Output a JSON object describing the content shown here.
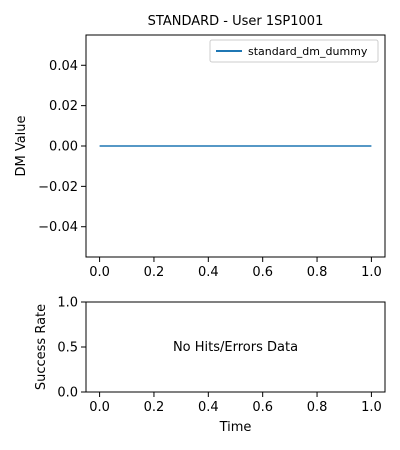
{
  "chart_data": [
    {
      "type": "line",
      "title": "STANDARD - User 1SP1001",
      "xlabel": "",
      "ylabel": "DM Value",
      "xlim": [
        -0.05,
        1.05
      ],
      "ylim": [
        -0.055,
        0.055
      ],
      "x_ticks": [
        0.0,
        0.2,
        0.4,
        0.6,
        0.8,
        1.0
      ],
      "x_tick_labels": [
        "0.0",
        "0.2",
        "0.4",
        "0.6",
        "0.8",
        "1.0"
      ],
      "y_ticks": [
        0.04,
        0.02,
        0.0,
        -0.02,
        -0.04
      ],
      "y_tick_labels": [
        "0.04",
        "0.02",
        "0.00",
        "−0.02",
        "−0.04"
      ],
      "legend_position": "top-right",
      "series": [
        {
          "name": "standard_dm_dummy",
          "color": "#1f77b4",
          "x": [
            0.0,
            1.0
          ],
          "y": [
            0.0,
            0.0
          ]
        }
      ]
    },
    {
      "type": "line",
      "title": "",
      "xlabel": "Time",
      "ylabel": "Success Rate",
      "xlim": [
        -0.05,
        1.05
      ],
      "ylim": [
        0.0,
        1.0
      ],
      "x_ticks": [
        0.0,
        0.2,
        0.4,
        0.6,
        0.8,
        1.0
      ],
      "x_tick_labels": [
        "0.0",
        "0.2",
        "0.4",
        "0.6",
        "0.8",
        "1.0"
      ],
      "y_ticks": [
        1.0,
        0.5,
        0.0
      ],
      "y_tick_labels": [
        "1.0",
        "0.5",
        "0.0"
      ],
      "annotation": "No Hits/Errors Data",
      "series": []
    }
  ]
}
